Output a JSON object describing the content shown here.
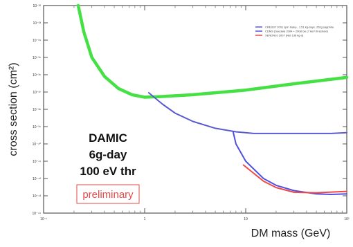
{
  "chart_data": {
    "type": "line",
    "title": "",
    "xlabel": "DM mass (GeV)",
    "ylabel": "cross section (cm²)",
    "x_scale": "log",
    "y_scale": "log",
    "xlim": [
      0.1,
      100
    ],
    "ylim": [
      1e-44,
      1e-32
    ],
    "grid": false,
    "legend_position": "top-right",
    "x_ticks": [
      {
        "value": 0.1,
        "label": "10⁻¹"
      },
      {
        "value": 1,
        "label": "1"
      },
      {
        "value": 10,
        "label": "10"
      },
      {
        "value": 100,
        "label": "10²"
      }
    ],
    "y_ticks": [
      {
        "value": 1e-32,
        "label": "10⁻³²"
      },
      {
        "value": 1e-33,
        "label": "10⁻³³"
      },
      {
        "value": 1e-34,
        "label": "10⁻³⁴"
      },
      {
        "value": 1e-35,
        "label": "10⁻³⁵"
      },
      {
        "value": 1e-36,
        "label": "10⁻³⁶"
      },
      {
        "value": 1e-37,
        "label": "10⁻³⁷"
      },
      {
        "value": 1e-38,
        "label": "10⁻³⁸"
      },
      {
        "value": 1e-39,
        "label": "10⁻³⁹"
      },
      {
        "value": 1e-40,
        "label": "10⁻⁴⁰"
      },
      {
        "value": 1e-41,
        "label": "10⁻⁴¹"
      },
      {
        "value": 1e-42,
        "label": "10⁻⁴²"
      },
      {
        "value": 1e-43,
        "label": "10⁻⁴³"
      },
      {
        "value": 1e-44,
        "label": "10⁻⁴⁴"
      }
    ],
    "series": [
      {
        "name": "",
        "color": "#44e044",
        "points": [
          [
            0.22,
            1e-32
          ],
          [
            0.25,
            3e-34
          ],
          [
            0.3,
            1e-35
          ],
          [
            0.4,
            8e-37
          ],
          [
            0.55,
            1.6e-37
          ],
          [
            0.75,
            7e-38
          ],
          [
            1.0,
            5e-38
          ],
          [
            1.5,
            5.5e-38
          ],
          [
            3,
            7e-38
          ],
          [
            10,
            1.3e-37
          ],
          [
            30,
            3e-37
          ],
          [
            100,
            7e-37
          ]
        ]
      },
      {
        "name": "CRESST 2001 spin indep., 1.51 kg-days, 262g sapphire",
        "color": "#5a5ad0",
        "points": [
          [
            1.1,
            9e-38
          ],
          [
            1.5,
            2e-38
          ],
          [
            2,
            6e-39
          ],
          [
            3,
            2e-39
          ],
          [
            5,
            8e-40
          ],
          [
            8,
            5e-40
          ],
          [
            12,
            4e-40
          ],
          [
            20,
            4e-40
          ],
          [
            40,
            4e-40
          ],
          [
            70,
            4e-40
          ],
          [
            100,
            4.5e-40
          ]
        ]
      },
      {
        "name": "CDMS (Soudan) 2004 + 2008 Ge (7 keV threshold)",
        "color": "#5050e0",
        "points": [
          [
            7.5,
            5e-40
          ],
          [
            8,
            1e-40
          ],
          [
            10,
            1e-41
          ],
          [
            15,
            1e-42
          ],
          [
            20,
            4e-43
          ],
          [
            30,
            2e-43
          ],
          [
            50,
            1.3e-43
          ],
          [
            70,
            1.2e-43
          ],
          [
            100,
            1.3e-43
          ]
        ]
      },
      {
        "name": "XENON10 2007 (Net 136 kg-d)",
        "color": "#ee4848",
        "points": [
          [
            9.5,
            6e-42
          ],
          [
            12,
            2e-42
          ],
          [
            15,
            7e-43
          ],
          [
            20,
            3e-43
          ],
          [
            30,
            1.6e-43
          ],
          [
            50,
            1.5e-43
          ],
          [
            100,
            1.8e-43
          ]
        ]
      }
    ],
    "annotations": [
      "DAMIC",
      "6g-day",
      "100 eV thr",
      "preliminary"
    ]
  }
}
